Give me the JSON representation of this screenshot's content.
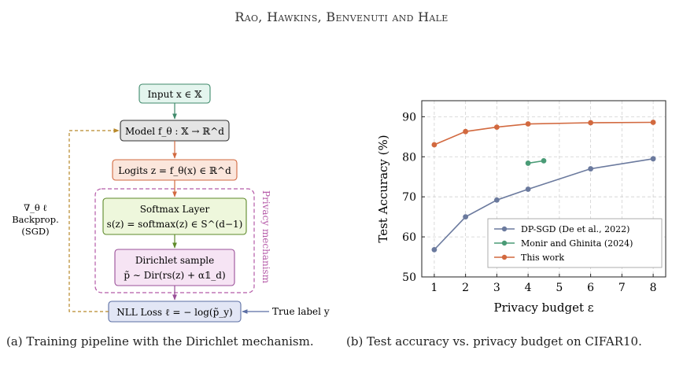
{
  "header": "Rao, Hawkins, Benvenuti and Hale",
  "diagram": {
    "nodes": {
      "input": "Input x ∈ 𝕏",
      "model": "Model f_θ : 𝕏 → ℝ^d",
      "logits": "Logits z = f_θ(x) ∈ ℝ^d",
      "softmax_title": "Softmax Layer",
      "softmax_eq": "s(z) = softmax(z) ∈ S^(d−1)",
      "dirichlet_title": "Dirichlet sample",
      "dirichlet_eq": "p̃ ∼ Dir(rs(z) + α𝟙_d)",
      "loss": "NLL Loss ℓ = − log(p̃_y)"
    },
    "privacy_label": "Privacy mechanism",
    "backprop": [
      "∇_θ ℓ",
      "Backprop.",
      "(SGD)"
    ],
    "true_label": "True label y"
  },
  "captions": {
    "a": "(a) Training pipeline with the Dirichlet mechanism.",
    "b": "(b) Test accuracy vs. privacy budget on CIFAR10."
  },
  "chart_data": {
    "type": "line",
    "xlabel": "Privacy budget ε",
    "ylabel": "Test Accuracy (%)",
    "xlim": [
      0.6,
      8.4
    ],
    "ylim": [
      50,
      94
    ],
    "xticks": [
      1,
      2,
      3,
      4,
      5,
      6,
      7,
      8
    ],
    "yticks": [
      50,
      60,
      70,
      80,
      90
    ],
    "grid": true,
    "legend_position": "bottom-right",
    "series": [
      {
        "name": "DP-SGD (De et al., 2022)",
        "color": "#6b7a9e",
        "x": [
          1,
          2,
          3,
          4,
          6,
          8
        ],
        "y": [
          56.8,
          65.0,
          69.2,
          71.9,
          77.0,
          79.5
        ]
      },
      {
        "name": "Monir and Ghinita (2024)",
        "color": "#4a9b76",
        "x": [
          4,
          4.5
        ],
        "y": [
          78.4,
          79.0
        ]
      },
      {
        "name": "This work",
        "color": "#d2693f",
        "x": [
          1,
          2,
          3,
          4,
          6,
          8
        ],
        "y": [
          83.0,
          86.3,
          87.4,
          88.2,
          88.5,
          88.6
        ]
      }
    ]
  }
}
